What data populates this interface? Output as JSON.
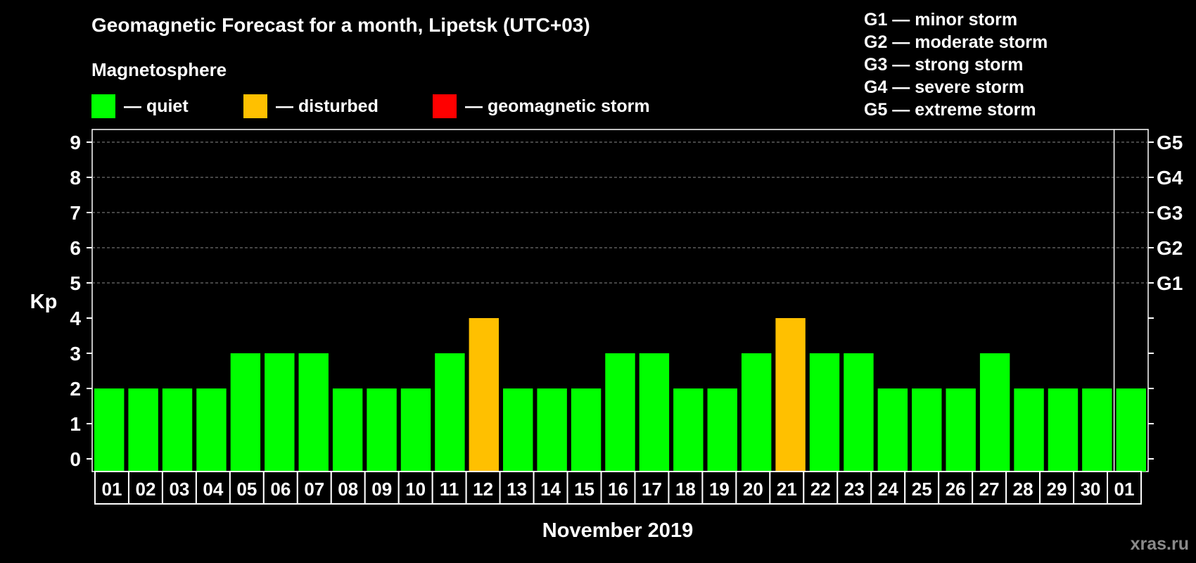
{
  "header": {
    "title": "Geomagnetic Forecast for a month, Lipetsk (UTC+03)",
    "magnetosphere_label": "Magnetosphere"
  },
  "legend": {
    "items": [
      {
        "label": "— quiet",
        "color": "#00ff00"
      },
      {
        "label": "— disturbed",
        "color": "#ffc000"
      },
      {
        "label": "— geomagnetic storm",
        "color": "#ff0000"
      }
    ]
  },
  "storm_scale": [
    "G1 — minor storm",
    "G2 — moderate storm",
    "G3 — strong storm",
    "G4 — severe storm",
    "G5 — extreme storm"
  ],
  "watermark": "xras.ru",
  "chart_data": {
    "type": "bar",
    "title": "Geomagnetic Forecast for a month, Lipetsk (UTC+03)",
    "xlabel": "November 2019",
    "ylabel": "Kp",
    "ylim": [
      0,
      9
    ],
    "yticks": [
      0,
      1,
      2,
      3,
      4,
      5,
      6,
      7,
      8,
      9
    ],
    "right_axis_labels": [
      {
        "kp": 5,
        "label": "G1"
      },
      {
        "kp": 6,
        "label": "G2"
      },
      {
        "kp": 7,
        "label": "G3"
      },
      {
        "kp": 8,
        "label": "G4"
      },
      {
        "kp": 9,
        "label": "G5"
      }
    ],
    "categories": [
      "01",
      "02",
      "03",
      "04",
      "05",
      "06",
      "07",
      "08",
      "09",
      "10",
      "11",
      "12",
      "13",
      "14",
      "15",
      "16",
      "17",
      "18",
      "19",
      "20",
      "21",
      "22",
      "23",
      "24",
      "25",
      "26",
      "27",
      "28",
      "29",
      "30",
      "01"
    ],
    "values": [
      2,
      2,
      2,
      2,
      3,
      3,
      3,
      2,
      2,
      2,
      3,
      4,
      2,
      2,
      2,
      3,
      3,
      2,
      2,
      3,
      4,
      3,
      3,
      2,
      2,
      2,
      3,
      2,
      2,
      2,
      2
    ],
    "status": [
      "quiet",
      "quiet",
      "quiet",
      "quiet",
      "quiet",
      "quiet",
      "quiet",
      "quiet",
      "quiet",
      "quiet",
      "quiet",
      "disturbed",
      "quiet",
      "quiet",
      "quiet",
      "quiet",
      "quiet",
      "quiet",
      "quiet",
      "quiet",
      "disturbed",
      "quiet",
      "quiet",
      "quiet",
      "quiet",
      "quiet",
      "quiet",
      "quiet",
      "quiet",
      "quiet",
      "quiet"
    ],
    "colors": {
      "quiet": "#00ff00",
      "disturbed": "#ffc000",
      "storm": "#ff0000"
    },
    "grid": true,
    "grid_from_kp": 5,
    "month_separator_after_index": 29
  }
}
